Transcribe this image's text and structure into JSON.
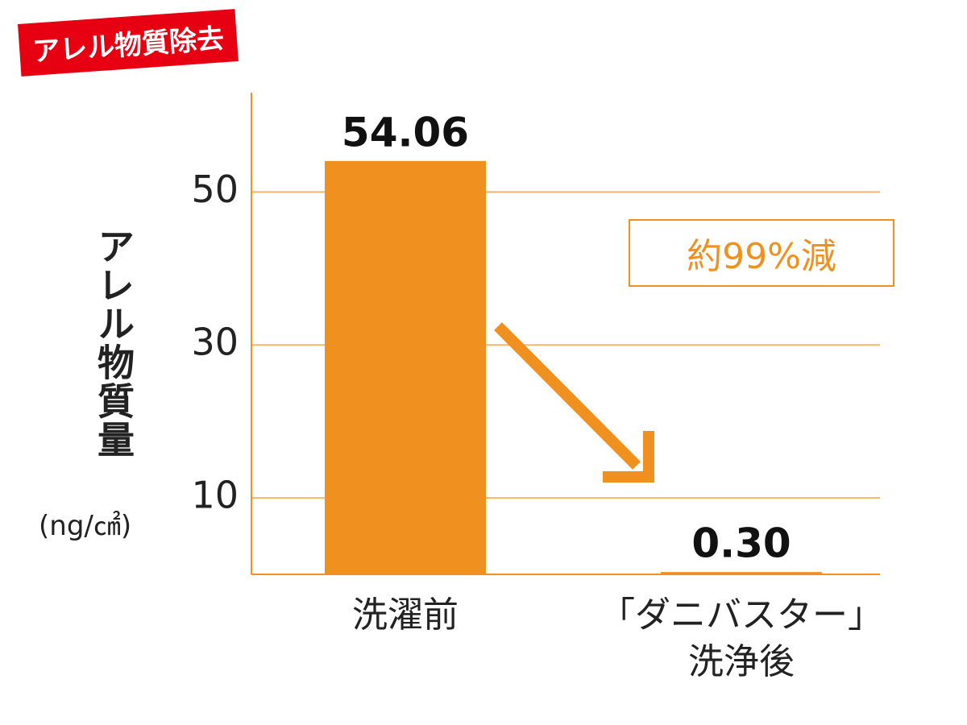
{
  "badge": "アレル物質除去",
  "chart_data": {
    "type": "bar",
    "y_label": "アレル物質量",
    "y_unit": "(ng/㎠)",
    "annotation": "約99%減",
    "categories": [
      "洗濯前",
      "「ダニバスター」\n洗浄後"
    ],
    "values": [
      54.06,
      0.3
    ],
    "value_labels": [
      "54.06",
      "0.30"
    ],
    "color": "#f0901e",
    "ylim": [
      0,
      63
    ],
    "yticks": [
      10,
      30,
      50
    ],
    "grid": true
  }
}
